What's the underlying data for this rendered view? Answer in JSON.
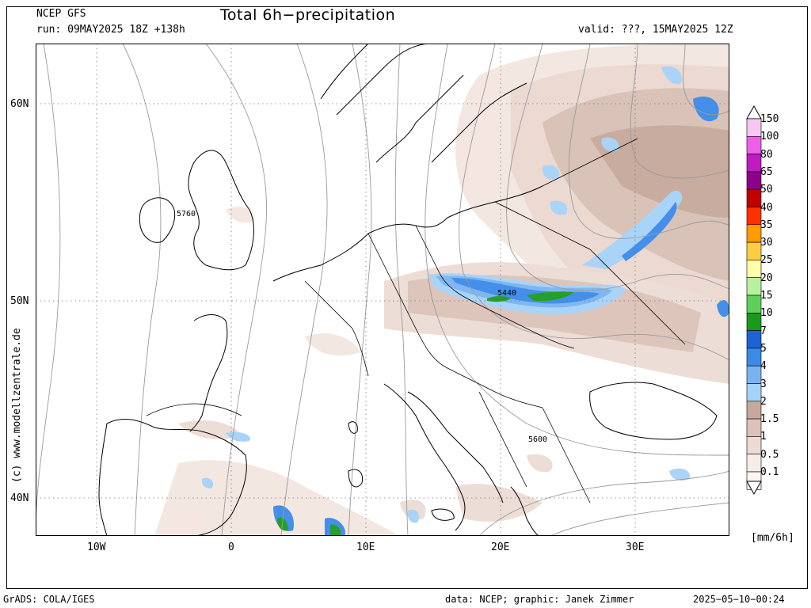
{
  "header": {
    "model": "NCEP GFS",
    "run": "run: 09MAY2025 18Z +138h",
    "title": "Total 6h−precipitation",
    "valid": "valid: ???, 15MAY2025 12Z"
  },
  "side_credit": "(c) www.modellzentrale.de",
  "axes": {
    "lat_labels": [
      "60N",
      "50N",
      "40N"
    ],
    "lon_labels": [
      "10W",
      "0",
      "10E",
      "20E",
      "30E"
    ]
  },
  "contour_labels": [
    "5760",
    "5440",
    "5600"
  ],
  "legend": {
    "unit": "[mm/6h]",
    "entries": [
      {
        "value": "150",
        "color": "#f7c6f2"
      },
      {
        "value": "100",
        "color": "#ee5fe8"
      },
      {
        "value": "80",
        "color": "#c21ac2"
      },
      {
        "value": "65",
        "color": "#8c008c"
      },
      {
        "value": "50",
        "color": "#c00000"
      },
      {
        "value": "40",
        "color": "#ff3000"
      },
      {
        "value": "35",
        "color": "#ff9a00"
      },
      {
        "value": "30",
        "color": "#ffce40"
      },
      {
        "value": "25",
        "color": "#ffffa8"
      },
      {
        "value": "20",
        "color": "#b8f0a0"
      },
      {
        "value": "15",
        "color": "#5fd05a"
      },
      {
        "value": "10",
        "color": "#1a9a1a"
      },
      {
        "value": "7",
        "color": "#1e63d6"
      },
      {
        "value": "5",
        "color": "#3a8ae8"
      },
      {
        "value": "4",
        "color": "#7ab4f0"
      },
      {
        "value": "3",
        "color": "#a5d2f8"
      },
      {
        "value": "2",
        "color": "#c7a89b"
      },
      {
        "value": "1.5",
        "color": "#dcc2b8"
      },
      {
        "value": "1",
        "color": "#ecdcd4"
      },
      {
        "value": "0.5",
        "color": "#f6ede8"
      },
      {
        "value": "0.1",
        "color": "#fbf5f2"
      }
    ]
  },
  "footer": {
    "left": "GrADS: COLA/IGES",
    "center": "data: NCEP; graphic: Janek Zimmer",
    "right": "2025−05−10−00:24"
  }
}
